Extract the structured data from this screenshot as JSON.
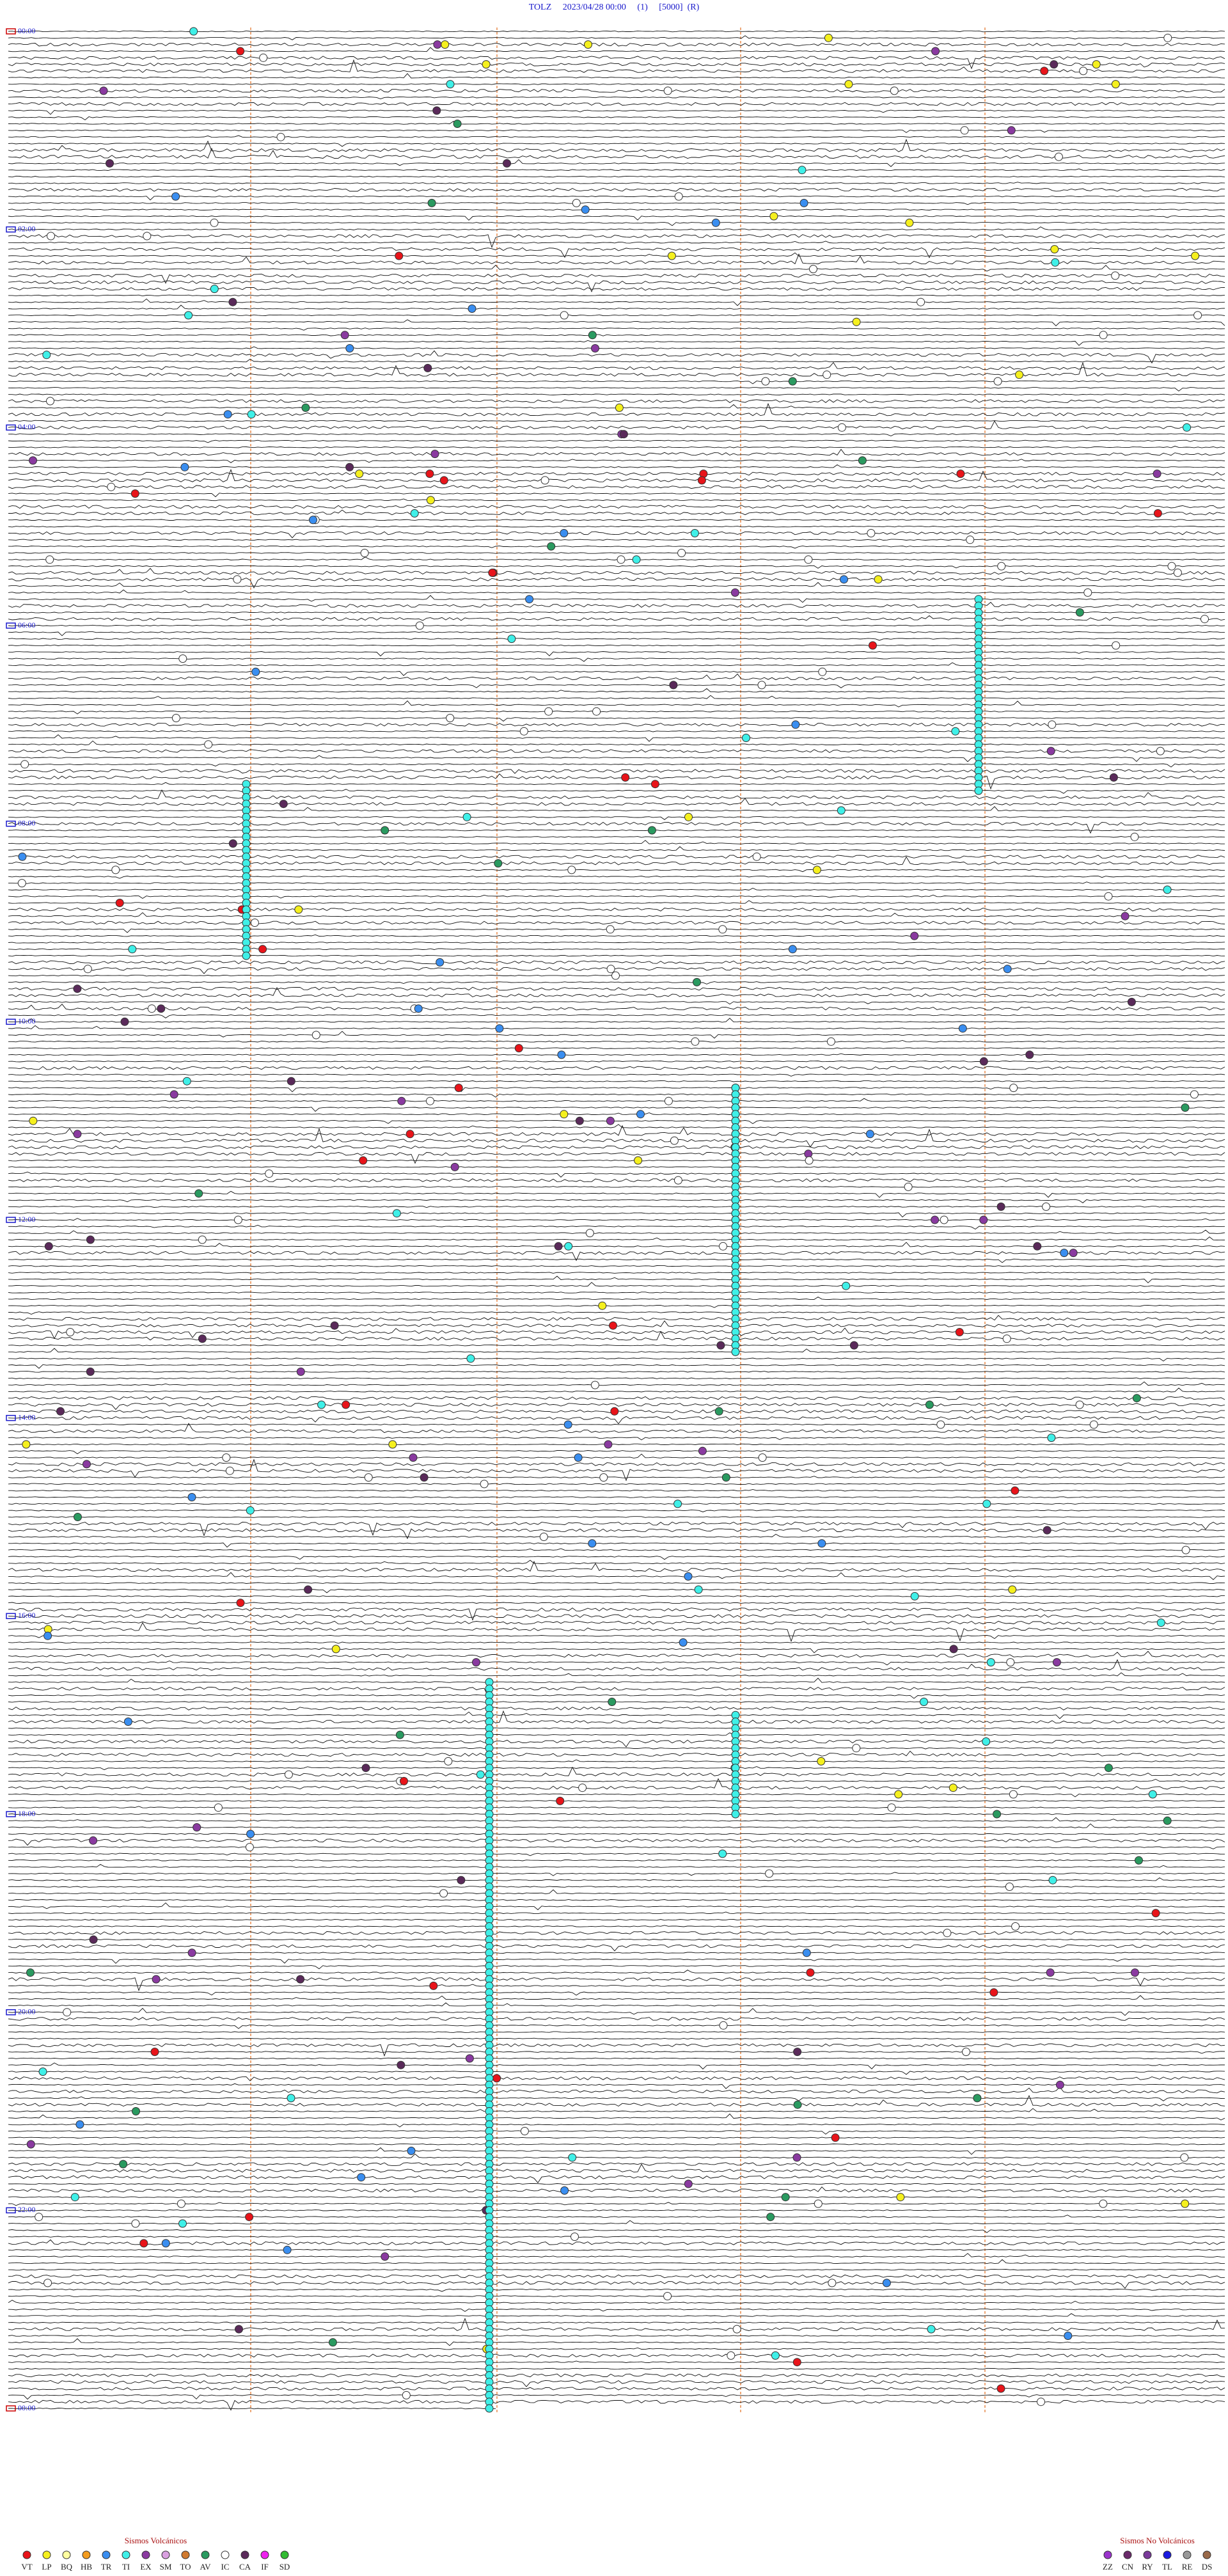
{
  "header": {
    "title": "TOLZ     2023/04/28 00:00     (1)     [5000]  (R)"
  },
  "hour_labels": [
    "00:00",
    "02:00",
    "04:00",
    "06:00",
    "08:00",
    "10:00",
    "12:00",
    "14:00",
    "16:00",
    "18:00",
    "20:00",
    "22:00",
    "00:00"
  ],
  "legend": {
    "volcanic": {
      "title": "Sismos Volcánicos",
      "items": [
        {
          "code": "VT",
          "color": "#e8141a"
        },
        {
          "code": "LP",
          "color": "#f5f01e"
        },
        {
          "code": "BQ",
          "color": "#ffffa0"
        },
        {
          "code": "HB",
          "color": "#f39c1f"
        },
        {
          "code": "TR",
          "color": "#3a8ef0"
        },
        {
          "code": "TI",
          "color": "#3ff0e8"
        },
        {
          "code": "EX",
          "color": "#8a3aa0"
        },
        {
          "code": "SM",
          "color": "#d9a0e0"
        },
        {
          "code": "TO",
          "color": "#d07a30"
        },
        {
          "code": "AV",
          "color": "#2a9a60"
        },
        {
          "code": "IC",
          "color": "#ffffff"
        },
        {
          "code": "CA",
          "color": "#5a2a5a"
        },
        {
          "code": "IF",
          "color": "#ee22ee"
        },
        {
          "code": "SD",
          "color": "#33bb33"
        }
      ]
    },
    "non_volcanic": {
      "title": "Sismos No Volcánicos",
      "items": [
        {
          "code": "ZZ",
          "color": "#9a33cc"
        },
        {
          "code": "CN",
          "color": "#6a2a6a"
        },
        {
          "code": "RY",
          "color": "#7a3a9a"
        },
        {
          "code": "TL",
          "color": "#1a1ae0"
        },
        {
          "code": "RE",
          "color": "#999999"
        },
        {
          "code": "DS",
          "color": "#9a6a4a"
        }
      ]
    }
  }
}
